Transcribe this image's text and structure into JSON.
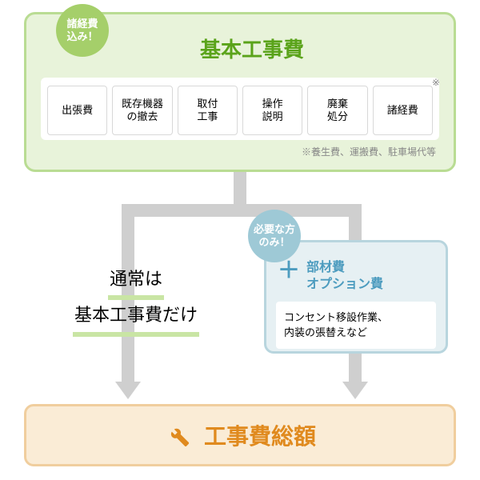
{
  "colors": {
    "green_border": "#b9dc93",
    "green_fill": "#e8f3da",
    "green_text": "#5aa31a",
    "green_badge": "#a5cf6a",
    "green_under": "#c9e5a4",
    "blue_border": "#b8d5de",
    "blue_fill": "#e6f0f3",
    "blue_text": "#4d9cbf",
    "blue_badge": "#9ec9d6",
    "orange_border": "#f0ce9e",
    "orange_fill": "#faecd6",
    "orange_text": "#e08a1e",
    "item_border": "#d8d8d8",
    "arrow": "#cfcfcf",
    "footnote": "#888888"
  },
  "badge_green": "諸経費\n込み！",
  "badge_blue": "必要な方\nのみ！",
  "top_title": "基本工事費",
  "items": [
    "出張費",
    "既存機器\nの撤去",
    "取付\n工事",
    "操作\n説明",
    "廃棄\n処分",
    "諸経費"
  ],
  "items_asterisk_index": 5,
  "footnote": "※養生費、運搬費、駐車場代等",
  "normal_line1": "通常は",
  "normal_line2": "基本工事費だけ",
  "option_title": "部材費\nオプション費",
  "option_body": "コンセント移設作業、\n内装の張替えなど",
  "total_label": "工事費総額"
}
